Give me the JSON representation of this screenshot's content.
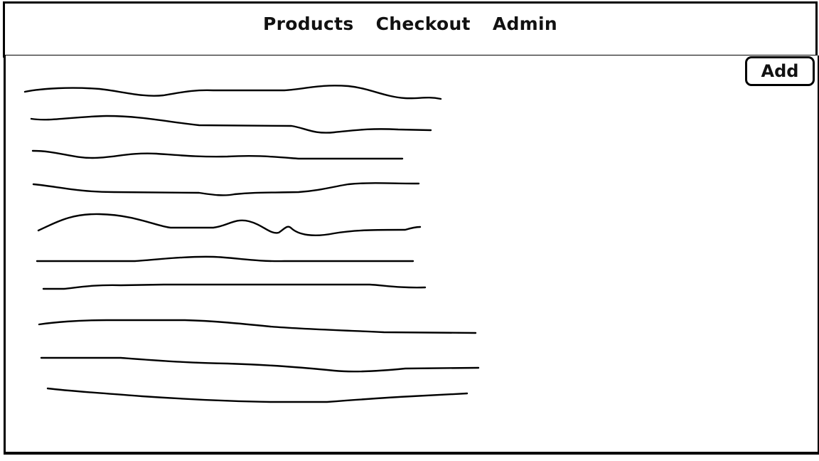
{
  "nav": {
    "items": [
      {
        "label": "Products"
      },
      {
        "label": "Checkout"
      },
      {
        "label": "Admin"
      }
    ]
  },
  "toolbar": {
    "add_label": "Add"
  },
  "list": {
    "item_count": 10
  }
}
